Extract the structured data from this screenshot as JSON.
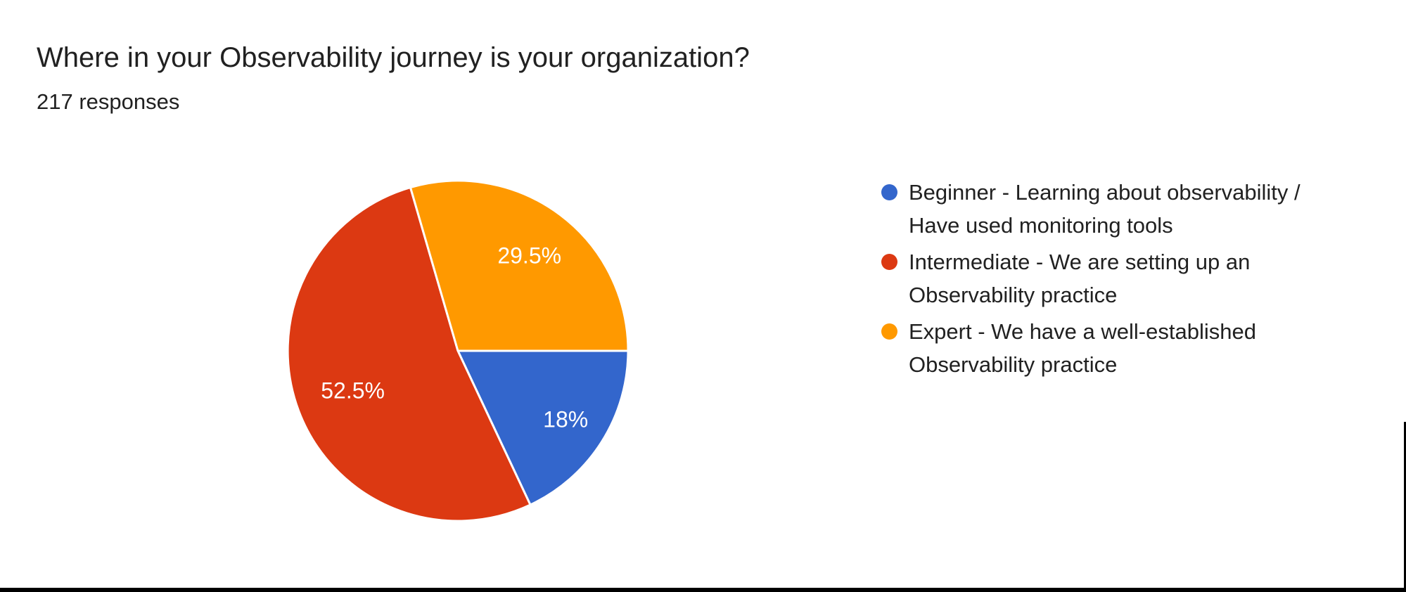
{
  "header": {
    "title": "Where in your Observability journey is your organization?",
    "responses": "217 responses"
  },
  "colors": {
    "slice_blue": "#3366CC",
    "slice_red": "#DC3912",
    "slice_orange": "#FF9900",
    "slice_border": "#ffffff",
    "slice_label_text": "#ffffff",
    "body_text": "#212121",
    "frame": "#000000",
    "background": "#ffffff"
  },
  "chart_data": {
    "type": "pie",
    "title": "Where in your Observability journey is your organization?",
    "subtitle": "217 responses",
    "total_responses": 217,
    "legend_position": "right",
    "start_angle_deg": 90,
    "direction": "clockwise",
    "slices": [
      {
        "name": "beginner",
        "label": "Beginner - Learning about observability / Have used monitoring tools",
        "legend_lines": [
          "Beginner - Learning about observability /",
          "Have used monitoring tools"
        ],
        "percent": 18,
        "display_value": "18%",
        "color": "#3366CC"
      },
      {
        "name": "intermediate",
        "label": "Intermediate - We are setting up an Observability practice",
        "legend_lines": [
          "Intermediate - We are setting up an",
          "Observability practice"
        ],
        "percent": 52.5,
        "display_value": "52.5%",
        "color": "#DC3912"
      },
      {
        "name": "expert",
        "label": "Expert - We have a well-established Observability practice",
        "legend_lines": [
          "Expert - We have a well-established",
          "Observability practice"
        ],
        "percent": 29.5,
        "display_value": "29.5%",
        "color": "#FF9900"
      }
    ]
  }
}
